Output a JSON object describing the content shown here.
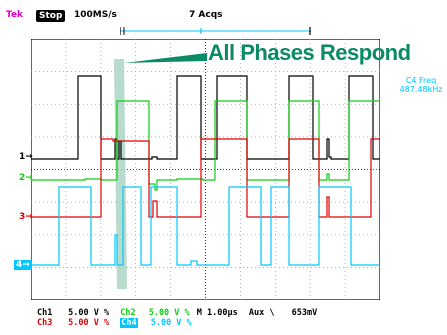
{
  "header": {
    "brand": "Tek",
    "state": "Stop",
    "sample_rate": "100MS/s",
    "acquisitions": "7 Acqs"
  },
  "callout": {
    "text": "All Phases Respond"
  },
  "measurement": {
    "line1": "C4 Freq",
    "line2": "487.48kHz"
  },
  "markers": {
    "ch1": "1",
    "ch2": "2",
    "ch3": "3",
    "ch4": "4"
  },
  "footer": {
    "row1": {
      "ch1_name": "Ch1",
      "ch1_scale": "5.00 V",
      "ch1_coupling": "%",
      "ch2_name": "Ch2",
      "ch2_scale": "5.00 V",
      "ch2_coupling": "%",
      "timebase": "M 1.00µs",
      "trigger_source": "Aux",
      "trigger_slope": "\\",
      "trigger_level": "653mV"
    },
    "row2": {
      "ch3_name": "Ch3",
      "ch3_scale": "5.00 V",
      "ch3_coupling": "%",
      "ch4_name": "Ch4",
      "ch4_scale": "5.00 V",
      "ch4_coupling": "%"
    }
  },
  "colors": {
    "ch1": "#000000",
    "ch2": "#11cc11",
    "ch3": "#e00000",
    "ch4": "#00c8ff",
    "callout": "#0b8a66",
    "highlight": "#9fcfbc"
  }
}
